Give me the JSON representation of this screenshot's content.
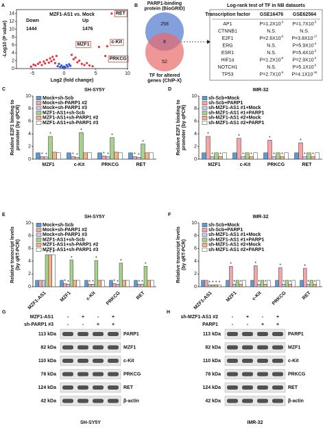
{
  "chart_data": [
    {
      "type": "scatter",
      "panel": "A",
      "title": "MZF1-AS1 vs. Mock",
      "xlabel": "Log2 (fold change)",
      "ylabel": "-Log10 (P value)",
      "xlim": [
        -7.5,
        10
      ],
      "xticks": [
        -5,
        0,
        5,
        10
      ],
      "ylim": [
        0,
        15
      ],
      "yticks": [
        0,
        2,
        4,
        6,
        8,
        10,
        12,
        14
      ],
      "down_label": "Down",
      "down_count": 1444,
      "up_label": "Up",
      "up_count": 1476,
      "series": [
        {
          "color": "#e8303a",
          "x": [
            -5.2,
            -4.8,
            -4.5,
            -4.1,
            -3.8,
            -3.5,
            -3.2,
            -3.0,
            -2.7,
            -2.4,
            -2.2,
            -2.0,
            -1.8,
            -1.6,
            -1.4,
            -1.2,
            1.2,
            1.5,
            1.8,
            2.1,
            2.4,
            2.8,
            3.2,
            3.6,
            4.0,
            4.5,
            5.5,
            6.5,
            6.8,
            7.5
          ],
          "values": [
            0.5,
            1.0,
            0.8,
            1.2,
            1.6,
            0.9,
            1.8,
            1.3,
            2.2,
            1.5,
            2.6,
            1.9,
            3.0,
            2.3,
            1.4,
            3.2,
            3.5,
            2.4,
            2.8,
            1.6,
            2.0,
            1.2,
            0.9,
            1.4,
            0.8,
            0.6,
            5.5,
            3.2,
            5.7,
            14
          ]
        },
        {
          "color": "#2f4fd0",
          "x": [
            -1,
            -0.8,
            -0.6,
            -0.4,
            -0.2,
            0,
            0.2,
            0.4,
            0.6,
            0.8,
            1.0
          ],
          "values": [
            0.6,
            1.2,
            0.4,
            0.8,
            0.3,
            0.5,
            0.3,
            0.9,
            0.5,
            1.1,
            0.7
          ]
        }
      ],
      "point_labels": [
        {
          "text": "RET",
          "x": 7.5,
          "y": 14
        },
        {
          "text": "MZF1",
          "x": 5.5,
          "y": 5.5
        },
        {
          "text": "c-Kit",
          "x": 6.8,
          "y": 5.7
        },
        {
          "text": "PRKCG",
          "x": 6.5,
          "y": 3.2
        }
      ]
    },
    {
      "type": "bar",
      "panel": "C",
      "title": "SH-SY5Y",
      "ylabel": [
        "Relative E2F1 binding to",
        "promoter (by qPCR)"
      ],
      "categories": [
        "MZF1",
        "c-Kit",
        "PRKCG",
        "RET"
      ],
      "ylim": [
        0,
        10
      ],
      "yticks": [
        0,
        2,
        4,
        6,
        8,
        10
      ],
      "series": [
        {
          "name": "Mock+sh-Scb",
          "color": "#5b9bd5",
          "values": [
            1,
            1,
            1,
            1
          ],
          "significance": [
            null,
            null,
            null,
            null
          ]
        },
        {
          "name": "Mock+sh-PARP1 #2",
          "color": "#f4a6a6",
          "values": [
            0.4,
            0.4,
            0.5,
            0.4
          ],
          "significance": [
            "*",
            "*",
            "*",
            "*"
          ]
        },
        {
          "name": "Mock+sh-PARP1 #3",
          "color": "#c9c9e8",
          "values": [
            0.35,
            0.3,
            0.4,
            0.3
          ],
          "significance": [
            "*",
            "*",
            "*",
            "*"
          ]
        },
        {
          "name": "MZF1-AS1+sh-Scb",
          "color": "#a9d18e",
          "values": [
            3.6,
            4.2,
            3.4,
            2.4
          ],
          "significance": [
            "*",
            "*",
            "*",
            "*"
          ]
        },
        {
          "name": "MZF1-AS1+sh-PARP1 #2",
          "color": "#f4b183",
          "values": [
            1.1,
            1,
            1.1,
            1
          ],
          "significance": [
            null,
            null,
            null,
            null
          ]
        },
        {
          "name": "MZF1-AS1+sh-PARP1 #3",
          "color": "#ffffff",
          "values": [
            1,
            1,
            1,
            1
          ],
          "significance": [
            null,
            null,
            null,
            null
          ]
        }
      ]
    },
    {
      "type": "bar",
      "panel": "D",
      "title": "IMR-32",
      "ylabel": [
        "Relative E2F1 binding to",
        "promoter (by qPCR)"
      ],
      "categories": [
        "MZF1",
        "c-Kit",
        "PRKCG",
        "RET"
      ],
      "ylim": [
        0,
        10
      ],
      "yticks": [
        0,
        2,
        4,
        6,
        8,
        10
      ],
      "series": [
        {
          "name": "sh-Scb+Mock",
          "color": "#5b9bd5",
          "values": [
            1,
            1,
            1,
            1
          ],
          "significance": [
            null,
            null,
            null,
            null
          ]
        },
        {
          "name": "sh-Scb+PARP1",
          "color": "#f4a6a6",
          "values": [
            3.6,
            3.3,
            3.0,
            2.6
          ],
          "significance": [
            "*",
            "*",
            "*",
            "*"
          ]
        },
        {
          "name": "sh-MZF1-AS1 #1+Mock",
          "color": "#c9c9e8",
          "values": [
            0.4,
            0.4,
            0.4,
            0.4
          ],
          "significance": [
            "*",
            "*",
            "*",
            "*"
          ]
        },
        {
          "name": "sh-MZF1-AS1 #1+PARP1",
          "color": "#a9d18e",
          "values": [
            1,
            1,
            1,
            1
          ],
          "significance": [
            null,
            null,
            null,
            null
          ]
        },
        {
          "name": "sh-MZF1-AS1 #2+Mock",
          "color": "#f4b183",
          "values": [
            0.4,
            0.4,
            0.4,
            0.4
          ],
          "significance": [
            "*",
            "*",
            "*",
            "*"
          ]
        },
        {
          "name": "sh-MZF1-AS1 #2+PARP1",
          "color": "#ffffff",
          "values": [
            1,
            1,
            1,
            1
          ],
          "significance": [
            null,
            null,
            null,
            null
          ]
        }
      ]
    },
    {
      "type": "bar",
      "panel": "E",
      "title": "SH-SY5Y",
      "ylabel": [
        "Relative transcript levels",
        "(by qRT-PCR)"
      ],
      "categories": [
        "MZF1-AS1",
        "MZF1",
        "c-Kit",
        "PRKCG",
        "RET"
      ],
      "ylim": [
        0,
        10
      ],
      "yticks": [
        0,
        2,
        4,
        6,
        8,
        10
      ],
      "series": [
        {
          "name": "Mock+sh-Scb",
          "color": "#5b9bd5",
          "values": [
            1,
            1,
            1,
            1,
            1
          ],
          "significance": [
            null,
            null,
            null,
            null,
            null
          ]
        },
        {
          "name": "Mock+sh-PARP1 #2",
          "color": "#f4a6a6",
          "values": [
            1,
            0.5,
            0.4,
            0.5,
            0.4
          ],
          "significance": [
            null,
            "*",
            "*",
            "*",
            "*"
          ]
        },
        {
          "name": "Mock+sh-PARP1 #3",
          "color": "#c9c9e8",
          "values": [
            1,
            0.4,
            0.4,
            0.4,
            0.4
          ],
          "significance": [
            null,
            "*",
            "*",
            "*",
            "*"
          ]
        },
        {
          "name": "MZF1-AS1+sh-Scb",
          "color": "#a9d18e",
          "values": [
            5.0,
            4.2,
            4.1,
            3.7,
            3.2
          ],
          "significance": [
            "*",
            "*",
            "*",
            "*",
            "*"
          ]
        },
        {
          "name": "MZF1-AS1+sh-PARP1 #2",
          "color": "#f4b183",
          "values": [
            5.0,
            1,
            1,
            1,
            1
          ],
          "significance": [
            "*",
            null,
            null,
            null,
            null
          ]
        },
        {
          "name": "MZF1-AS1+sh-PARP1 #3",
          "color": "#ffffff",
          "values": [
            5.0,
            1,
            1,
            1,
            1
          ],
          "significance": [
            "*",
            null,
            null,
            null,
            null
          ]
        }
      ]
    },
    {
      "type": "bar",
      "panel": "F",
      "title": "IMR-32",
      "ylabel": [
        "Relative transcript levels",
        "(by qRT-PCR)"
      ],
      "categories": [
        "MZF1-AS1",
        "MZF1",
        "c-Kit",
        "PRKCG",
        "RET"
      ],
      "ylim": [
        0,
        10
      ],
      "yticks": [
        0,
        2,
        4,
        6,
        8,
        10
      ],
      "series": [
        {
          "name": "sh-Scb+Mock",
          "color": "#5b9bd5",
          "values": [
            1,
            1,
            1,
            1,
            1
          ],
          "significance": [
            null,
            null,
            null,
            null,
            null
          ]
        },
        {
          "name": "sh-Scb+PARP1",
          "color": "#f4a6a6",
          "values": [
            1,
            3.2,
            3.3,
            3.0,
            2.9
          ],
          "significance": [
            null,
            "*",
            "*",
            "*",
            "*"
          ]
        },
        {
          "name": "sh-MZF1-AS1 #1+Mock",
          "color": "#c9c9e8",
          "values": [
            0.3,
            0.4,
            0.4,
            0.4,
            0.4
          ],
          "significance": [
            "*",
            "*",
            "*",
            "*",
            "*"
          ]
        },
        {
          "name": "sh-MZF1-AS1 #1+PARP1",
          "color": "#a9d18e",
          "values": [
            0.3,
            1,
            1,
            1,
            1
          ],
          "significance": [
            "*",
            null,
            null,
            null,
            null
          ]
        },
        {
          "name": "sh-MZF1-AS1 #2+Mock",
          "color": "#f4b183",
          "values": [
            0.3,
            0.4,
            0.4,
            0.4,
            0.4
          ],
          "significance": [
            "*",
            "*",
            "*",
            "*",
            "*"
          ]
        },
        {
          "name": "sh-MZF1-AS1 #2+PARP1",
          "color": "#ffffff",
          "values": [
            0.3,
            1,
            1,
            1,
            1
          ],
          "significance": [
            "*",
            null,
            null,
            null,
            null
          ]
        }
      ]
    }
  ],
  "venn": {
    "panel": "B",
    "top_label": [
      "PARP1-binding",
      "protein (BioGRID)"
    ],
    "bottom_label": [
      "TF for altered",
      "genes (ChIP-X)"
    ],
    "counts": [
      258,
      8,
      52
    ]
  },
  "table": {
    "title": "Log-rank test of TF in NB datasets",
    "header": [
      "Transcription factor",
      "GSE16476",
      "GSE62564"
    ],
    "rows": [
      [
        "AP1",
        {
          "base": "P=1.2X10",
          "exp": "-5"
        },
        {
          "base": "P=1.7X10",
          "exp": "-5"
        }
      ],
      [
        "CTNNB1",
        "N.S.",
        "N.S."
      ],
      [
        "E2F1",
        {
          "base": "P=2.6X10",
          "exp": "-5"
        },
        {
          "base": "P=3.8X10",
          "exp": "-17"
        }
      ],
      [
        "ERG",
        "N.S.",
        {
          "base": "P=5.9X10",
          "exp": "-3"
        }
      ],
      [
        "ESR1",
        "N.S.",
        {
          "base": "P=5.4X10",
          "exp": "-5"
        }
      ],
      [
        "HIF1α",
        {
          "base": "P=1.2X10",
          "exp": "-5"
        },
        {
          "base": "P=2.9X10",
          "exp": "-3"
        }
      ],
      [
        "NOTCH1",
        "N.S.",
        {
          "base": "P=5.1X10",
          "exp": "-5"
        }
      ],
      [
        "TP53",
        {
          "base": "P=2.7X10",
          "exp": "-5"
        },
        {
          "base": "P=4.1X10",
          "exp": "-16"
        }
      ]
    ]
  },
  "blots": [
    {
      "panel": "G",
      "conditions": [
        {
          "name": "MZF1-AS1",
          "signs": [
            "-",
            "+",
            "-",
            "+"
          ]
        },
        {
          "name": "sh-PARP1 #3",
          "signs": [
            "-",
            "-",
            "+",
            "+"
          ]
        }
      ],
      "rows": [
        {
          "size": "113 kDa",
          "protein": "PARP1"
        },
        {
          "size": "82 kDa",
          "protein": "MZF1"
        },
        {
          "size": "110 kDa",
          "protein": "c-Kit"
        },
        {
          "size": "78 kDa",
          "protein": "PRKCG"
        },
        {
          "size": "124 kDa",
          "protein": "RET"
        },
        {
          "size": "42 kDa",
          "protein": "β-actin"
        }
      ],
      "cell_line": "SH-SY5Y"
    },
    {
      "panel": "H",
      "conditions": [
        {
          "name": "sh-MZF1-AS1 #2",
          "signs": [
            "-",
            "+",
            "-",
            "+"
          ]
        },
        {
          "name": "PARP1",
          "signs": [
            "-",
            "-",
            "+",
            "+"
          ]
        }
      ],
      "rows": [
        {
          "size": "113 kDa",
          "protein": "PARP1"
        },
        {
          "size": "82 kDa",
          "protein": "MZF1"
        },
        {
          "size": "110 kDa",
          "protein": "c-Kit"
        },
        {
          "size": "78 kDa",
          "protein": "PRKCG"
        },
        {
          "size": "124 kDa",
          "protein": "RET"
        },
        {
          "size": "42 kDa",
          "protein": "β-actin"
        }
      ],
      "cell_line": "IMR-32"
    }
  ]
}
